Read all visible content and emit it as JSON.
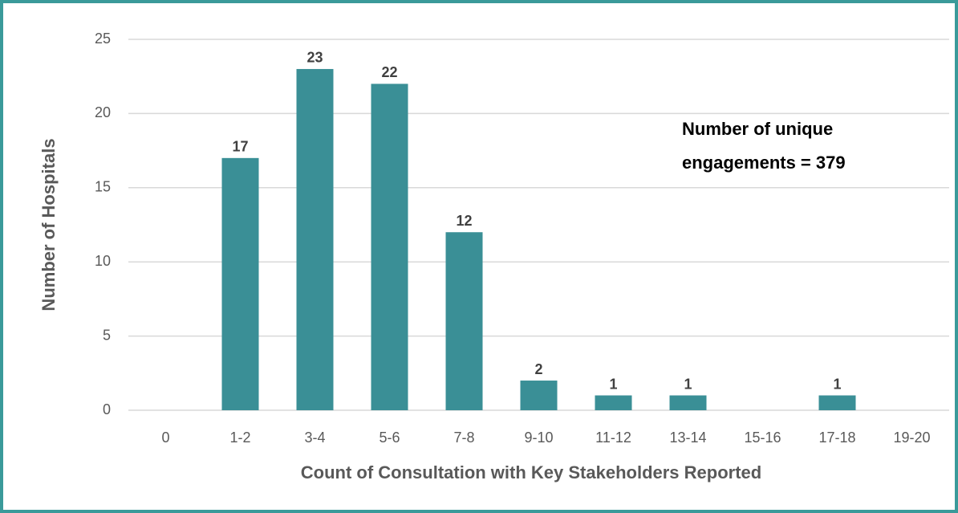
{
  "chart_data": {
    "type": "bar",
    "x_label": "Count of Consultation with Key Stakeholders Reported",
    "y_label": "Number of Hospitals",
    "annotation": [
      "Number of unique",
      "engagements = 379"
    ],
    "categories": [
      "0",
      "1-2",
      "3-4",
      "5-6",
      "7-8",
      "9-10",
      "11-12",
      "13-14",
      "15-16",
      "17-18",
      "19-20"
    ],
    "values": [
      0,
      17,
      23,
      22,
      12,
      2,
      1,
      1,
      0,
      1,
      0
    ],
    "color": "#3a8f96",
    "ylim": [
      0,
      25
    ],
    "yticks": [
      0,
      5,
      10,
      15,
      20,
      25
    ],
    "grid": true
  }
}
